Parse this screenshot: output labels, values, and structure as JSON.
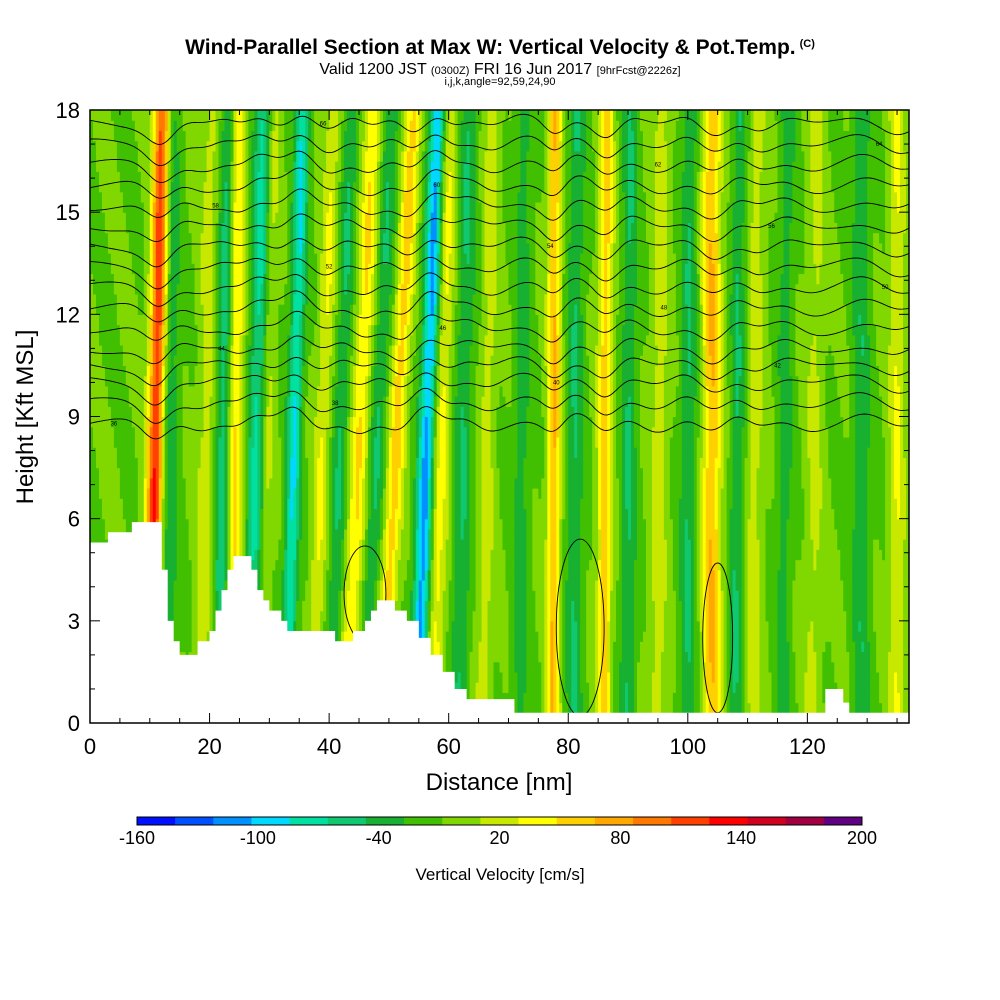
{
  "header": {
    "title_main": "Wind-Parallel Section at Max W: Vertical Velocity & Pot.Temp.",
    "title_copyright": "(C)",
    "valid_prefix": "Valid 1200 JST",
    "valid_utc": "(0300Z)",
    "valid_date": "FRI 16 Jun 2017",
    "forecast": "[9hrFcst@2226z]",
    "params": "i,j,k,angle=92,59,24,90"
  },
  "chart_data": {
    "type": "heatmap",
    "xlabel": "Distance [nm]",
    "ylabel": "Height [Kft MSL]",
    "xlim": [
      0,
      137
    ],
    "ylim": [
      0,
      18
    ],
    "x_ticks": [
      "0",
      "20",
      "40",
      "60",
      "80",
      "100",
      "120"
    ],
    "x_tick_values": [
      0,
      20,
      40,
      60,
      80,
      100,
      120
    ],
    "y_ticks": [
      "0",
      "3",
      "6",
      "9",
      "12",
      "15",
      "18"
    ],
    "y_tick_values": [
      0,
      3,
      6,
      9,
      12,
      15,
      18
    ],
    "colorbar": {
      "title": "Vertical Velocity [cm/s]",
      "min": -160,
      "max": 200,
      "step": 20,
      "labels": [
        "-160",
        "-100",
        "-40",
        "20",
        "80",
        "140",
        "200"
      ],
      "label_values": [
        -160,
        -100,
        -40,
        20,
        80,
        140,
        200
      ],
      "colors": [
        "#0010ff",
        "#0050ff",
        "#0090ff",
        "#00d8ff",
        "#00e0a0",
        "#10c870",
        "#18b030",
        "#40c000",
        "#80d800",
        "#c8e800",
        "#ffff00",
        "#ffd000",
        "#ffa800",
        "#ff7800",
        "#ff4000",
        "#ff0000",
        "#d00020",
        "#a00040",
        "#600080"
      ]
    },
    "terrain_kft": [
      [
        0,
        5.3
      ],
      [
        2,
        5.3
      ],
      [
        3,
        5.6
      ],
      [
        6,
        5.6
      ],
      [
        7,
        5.9
      ],
      [
        11,
        5.9
      ],
      [
        12,
        4.5
      ],
      [
        13,
        3.0
      ],
      [
        14,
        2.4
      ],
      [
        15,
        2.0
      ],
      [
        17,
        2.0
      ],
      [
        18,
        2.4
      ],
      [
        20,
        2.7
      ],
      [
        21,
        3.3
      ],
      [
        22,
        3.9
      ],
      [
        23,
        4.5
      ],
      [
        24,
        4.9
      ],
      [
        26,
        4.9
      ],
      [
        27,
        4.5
      ],
      [
        28,
        3.9
      ],
      [
        29,
        3.6
      ],
      [
        30,
        3.3
      ],
      [
        32,
        3.0
      ],
      [
        33,
        2.7
      ],
      [
        40,
        2.7
      ],
      [
        41,
        2.4
      ],
      [
        43,
        2.4
      ],
      [
        44,
        2.7
      ],
      [
        46,
        3.0
      ],
      [
        47,
        3.3
      ],
      [
        48,
        3.6
      ],
      [
        50,
        3.6
      ],
      [
        51,
        3.3
      ],
      [
        53,
        3.0
      ],
      [
        55,
        2.5
      ],
      [
        57,
        2.0
      ],
      [
        59,
        1.5
      ],
      [
        61,
        1.0
      ],
      [
        63,
        0.7
      ],
      [
        70,
        0.7
      ],
      [
        71,
        0.3
      ],
      [
        122,
        0.3
      ],
      [
        123,
        1.0
      ],
      [
        125,
        1.0
      ],
      [
        126,
        0.6
      ],
      [
        127,
        0.3
      ],
      [
        137,
        0.3
      ]
    ],
    "updraft_bands": [
      {
        "x": 10.5,
        "slope": 0.12,
        "w": 140,
        "width": 1.4
      },
      {
        "x": 19,
        "slope": 0.1,
        "w": 30,
        "width": 1.5
      },
      {
        "x": 24,
        "slope": 0.05,
        "w": 70,
        "width": 1.4
      },
      {
        "x": 29,
        "slope": 0.12,
        "w": 40,
        "width": 1.2
      },
      {
        "x": 38,
        "slope": 0.2,
        "w": 40,
        "width": 1.3
      },
      {
        "x": 44,
        "slope": 0.25,
        "w": 60,
        "width": 1.5
      },
      {
        "x": 50,
        "slope": 0.3,
        "w": 70,
        "width": 1.4
      },
      {
        "x": 58,
        "slope": 0.15,
        "w": 50,
        "width": 1.5
      },
      {
        "x": 66,
        "slope": 0.1,
        "w": 30,
        "width": 1.3
      },
      {
        "x": 77.5,
        "slope": 0.02,
        "w": 80,
        "width": 1.1
      },
      {
        "x": 86,
        "slope": 0.03,
        "w": 70,
        "width": 1.2
      },
      {
        "x": 95,
        "slope": 0.05,
        "w": 30,
        "width": 1.5
      },
      {
        "x": 104,
        "slope": 0.0,
        "w": 80,
        "width": 1.6
      },
      {
        "x": 111,
        "slope": 0.05,
        "w": 30,
        "width": 1.4
      },
      {
        "x": 121,
        "slope": 0.05,
        "w": 25,
        "width": 1.5
      },
      {
        "x": 135,
        "slope": 0.0,
        "w": 40,
        "width": 1.3
      }
    ],
    "downdraft_bands": [
      {
        "x": 13,
        "slope": 0.05,
        "w": -40,
        "width": 1.5
      },
      {
        "x": 22,
        "slope": 0.1,
        "w": -60,
        "width": 1.4
      },
      {
        "x": 27.5,
        "slope": 0.12,
        "w": -70,
        "width": 1.6
      },
      {
        "x": 33.5,
        "slope": 0.15,
        "w": -80,
        "width": 1.2
      },
      {
        "x": 41,
        "slope": 0.2,
        "w": -40,
        "width": 1.3
      },
      {
        "x": 47,
        "slope": 0.25,
        "w": -40,
        "width": 1.4
      },
      {
        "x": 55.5,
        "slope": 0.2,
        "w": -110,
        "width": 1.4
      },
      {
        "x": 62,
        "slope": 0.1,
        "w": -40,
        "width": 1.5
      },
      {
        "x": 72,
        "slope": 0.05,
        "w": -30,
        "width": 1.4
      },
      {
        "x": 81,
        "slope": 0.03,
        "w": -40,
        "width": 1.4
      },
      {
        "x": 90,
        "slope": 0.03,
        "w": -40,
        "width": 1.3
      },
      {
        "x": 100,
        "slope": 0.03,
        "w": -40,
        "width": 1.4
      },
      {
        "x": 108,
        "slope": 0.05,
        "w": -40,
        "width": 1.2
      },
      {
        "x": 116,
        "slope": 0.05,
        "w": -30,
        "width": 1.3
      },
      {
        "x": 129,
        "slope": 0.0,
        "w": -35,
        "width": 1.5
      }
    ],
    "theta_contour_heights_kft": [
      8.8,
      9.4,
      10.0,
      10.5,
      11.0,
      11.6,
      12.2,
      12.8,
      13.4,
      14.0,
      14.6,
      15.2,
      15.8,
      16.4,
      17.0,
      17.6
    ],
    "theta_contour_labels": [
      "36",
      "38",
      "40",
      "42",
      "44",
      "46",
      "48",
      "50",
      "52",
      "54",
      "56",
      "58",
      "60",
      "62",
      "64",
      "66"
    ]
  }
}
